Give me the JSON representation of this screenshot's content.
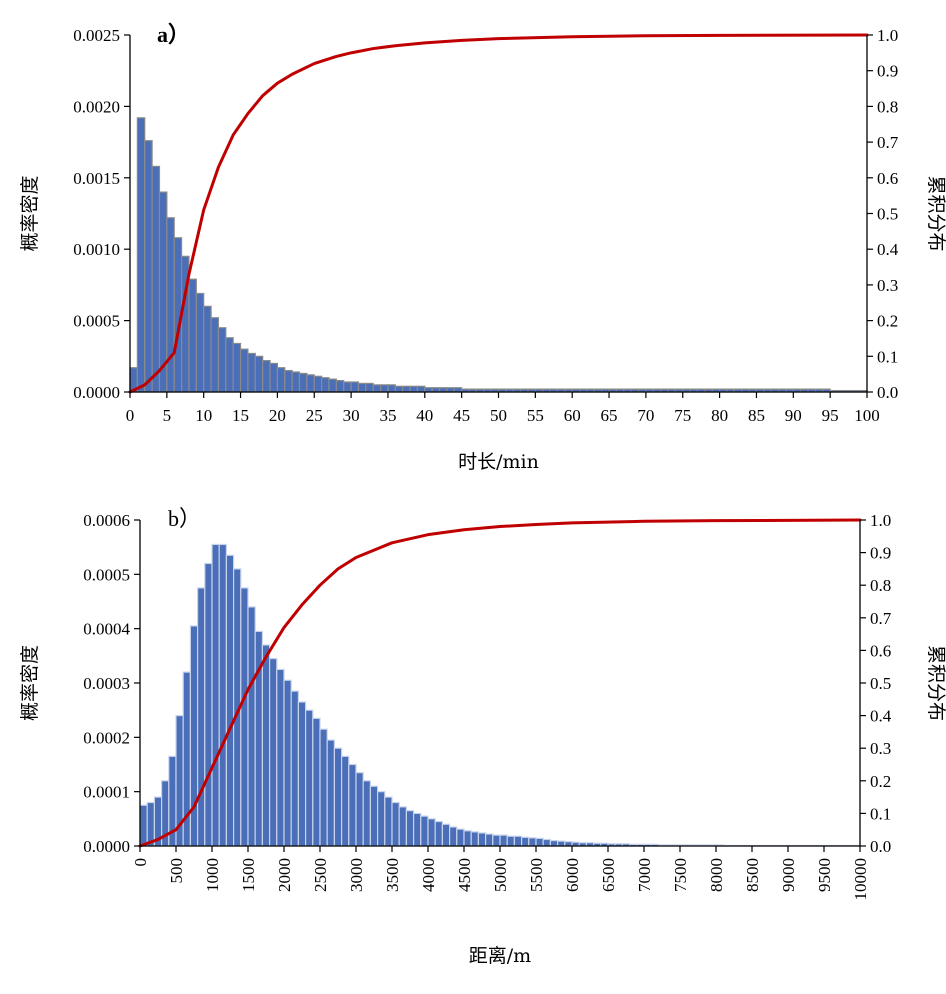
{
  "chart_data": [
    {
      "type": "bar",
      "panel_label": "a）",
      "xlabel": "时长/min",
      "ylabel": "概率密度",
      "y2label": "累积分布",
      "xlim": [
        0,
        100
      ],
      "ylim": [
        0,
        0.0025
      ],
      "y2lim": [
        0,
        1
      ],
      "x_ticks": [
        0,
        5,
        10,
        15,
        20,
        25,
        30,
        35,
        40,
        45,
        50,
        55,
        60,
        65,
        70,
        75,
        80,
        85,
        90,
        95,
        100
      ],
      "x_tick_labels": [
        "0",
        "5",
        "10",
        "15",
        "20",
        "25",
        "30",
        "35",
        "40",
        "45",
        "50",
        "55",
        "60",
        "65",
        "70",
        "75",
        "80",
        "85",
        "90",
        "95",
        "100"
      ],
      "y_ticks": [
        0,
        0.0005,
        0.001,
        0.0015,
        0.002,
        0.0025
      ],
      "y_tick_labels": [
        "0.0000",
        "0.0005",
        "0.0010",
        "0.0015",
        "0.0020",
        "0.0025"
      ],
      "y2_ticks": [
        0,
        0.1,
        0.2,
        0.3,
        0.4,
        0.5,
        0.6,
        0.7,
        0.8,
        0.9,
        1
      ],
      "y2_tick_labels": [
        "0.0",
        "0.1",
        "0.2",
        "0.3",
        "0.4",
        "0.5",
        "0.6",
        "0.7",
        "0.8",
        "0.9",
        "1.0"
      ],
      "bin_width": 1,
      "bin_start": 0,
      "histogram": [
        0.00017,
        0.00192,
        0.00176,
        0.00158,
        0.0014,
        0.00122,
        0.00108,
        0.00095,
        0.00079,
        0.00069,
        0.0006,
        0.00052,
        0.00045,
        0.00038,
        0.00034,
        0.0003,
        0.00027,
        0.00025,
        0.00022,
        0.0002,
        0.00017,
        0.00015,
        0.00014,
        0.00013,
        0.00012,
        0.00011,
        0.0001,
        9e-05,
        8e-05,
        7e-05,
        7e-05,
        6e-05,
        6e-05,
        5e-05,
        5e-05,
        5e-05,
        4e-05,
        4e-05,
        4e-05,
        4e-05,
        3e-05,
        3e-05,
        3e-05,
        3e-05,
        3e-05,
        2e-05,
        2e-05,
        2e-05,
        2e-05,
        2e-05,
        2e-05,
        2e-05,
        2e-05,
        2e-05,
        2e-05,
        2e-05,
        2e-05,
        2e-05,
        2e-05,
        2e-05,
        2e-05,
        2e-05,
        2e-05,
        2e-05,
        2e-05,
        2e-05,
        2e-05,
        2e-05,
        2e-05,
        2e-05,
        2e-05,
        2e-05,
        2e-05,
        2e-05,
        2e-05,
        2e-05,
        2e-05,
        2e-05,
        2e-05,
        2e-05,
        2e-05,
        2e-05,
        2e-05,
        2e-05,
        2e-05,
        2e-05,
        2e-05,
        2e-05,
        2e-05,
        2e-05,
        2e-05,
        2e-05,
        2e-05,
        2e-05,
        2e-05,
        1e-05,
        1e-05,
        1e-05,
        1e-05,
        1e-05
      ],
      "bar_color": "#4a6fb8",
      "bar_edge": "#8a8a8a",
      "cdf": [
        [
          0,
          0
        ],
        [
          2,
          0.02
        ],
        [
          4,
          0.06
        ],
        [
          6,
          0.11
        ],
        [
          8,
          0.33
        ],
        [
          10,
          0.51
        ],
        [
          12,
          0.63
        ],
        [
          14,
          0.72
        ],
        [
          16,
          0.78
        ],
        [
          18,
          0.83
        ],
        [
          20,
          0.865
        ],
        [
          22,
          0.89
        ],
        [
          25,
          0.92
        ],
        [
          28,
          0.94
        ],
        [
          30,
          0.95
        ],
        [
          33,
          0.962
        ],
        [
          36,
          0.97
        ],
        [
          40,
          0.978
        ],
        [
          45,
          0.985
        ],
        [
          50,
          0.99
        ],
        [
          60,
          0.995
        ],
        [
          70,
          0.998
        ],
        [
          80,
          0.999
        ],
        [
          100,
          1
        ]
      ],
      "cdf_color": "#c00000"
    },
    {
      "type": "bar",
      "panel_label": "b）",
      "xlabel": "距离/m",
      "ylabel": "概率密度",
      "y2label": "累积分布",
      "xlim": [
        0,
        10000
      ],
      "ylim": [
        0,
        0.0006
      ],
      "y2lim": [
        0,
        1
      ],
      "x_ticks": [
        0,
        500,
        1000,
        1500,
        2000,
        2500,
        3000,
        3500,
        4000,
        4500,
        5000,
        5500,
        6000,
        6500,
        7000,
        7500,
        8000,
        8500,
        9000,
        9500,
        10000
      ],
      "x_tick_labels": [
        "0",
        "500",
        "1000",
        "1500",
        "2000",
        "2500",
        "3000",
        "3500",
        "4000",
        "4500",
        "5000",
        "5500",
        "6000",
        "6500",
        "7000",
        "7500",
        "8000",
        "8500",
        "9000",
        "9500",
        "10000"
      ],
      "y_ticks": [
        0,
        0.0001,
        0.0002,
        0.0003,
        0.0004,
        0.0005,
        0.0006
      ],
      "y_tick_labels": [
        "0.0000",
        "0.0001",
        "0.0002",
        "0.0003",
        "0.0004",
        "0.0005",
        "0.0006"
      ],
      "y2_ticks": [
        0,
        0.1,
        0.2,
        0.3,
        0.4,
        0.5,
        0.6,
        0.7,
        0.8,
        0.9,
        1
      ],
      "y2_tick_labels": [
        "0.0",
        "0.1",
        "0.2",
        "0.3",
        "0.4",
        "0.5",
        "0.6",
        "0.7",
        "0.8",
        "0.9",
        "1.0"
      ],
      "bin_width": 100,
      "bin_start": 0,
      "histogram": [
        7.5e-05,
        8e-05,
        9e-05,
        0.00012,
        0.000165,
        0.00024,
        0.00032,
        0.000405,
        0.000475,
        0.00052,
        0.000555,
        0.000555,
        0.000535,
        0.00051,
        0.000475,
        0.00044,
        0.000395,
        0.00037,
        0.000345,
        0.000325,
        0.000305,
        0.000285,
        0.000265,
        0.00025,
        0.000235,
        0.000215,
        0.000195,
        0.00018,
        0.000165,
        0.00015,
        0.000135,
        0.00012,
        0.00011,
        0.0001,
        9e-05,
        8e-05,
        7.2e-05,
        6.5e-05,
        6e-05,
        5.5e-05,
        5e-05,
        4.5e-05,
        4e-05,
        3.5e-05,
        3.1e-05,
        2.8e-05,
        2.6e-05,
        2.4e-05,
        2.2e-05,
        2e-05,
        2e-05,
        1.8e-05,
        1.8e-05,
        1.6e-05,
        1.5e-05,
        1.4e-05,
        1.2e-05,
        1e-05,
        9e-06,
        8e-06,
        7e-06,
        6e-06,
        6e-06,
        5e-06,
        5e-06,
        4e-06,
        4e-06,
        4e-06,
        3e-06,
        3e-06,
        3e-06,
        3e-06,
        2e-06,
        2e-06,
        2e-06,
        2e-06,
        2e-06,
        2e-06,
        2e-06,
        2e-06,
        2e-06,
        1e-06,
        1e-06,
        1e-06,
        1e-06,
        1e-06,
        1e-06,
        1e-06,
        1e-06,
        1e-06,
        1e-06,
        1e-06,
        1e-06,
        1e-06,
        1e-06,
        1e-06,
        1e-06,
        1e-06,
        1e-06,
        1e-06
      ],
      "bar_color": "#4a6fb8",
      "bar_edge": "#c8d3ec",
      "cdf": [
        [
          0,
          0
        ],
        [
          250,
          0.02
        ],
        [
          500,
          0.05
        ],
        [
          750,
          0.12
        ],
        [
          1000,
          0.24
        ],
        [
          1250,
          0.36
        ],
        [
          1500,
          0.48
        ],
        [
          1750,
          0.58
        ],
        [
          2000,
          0.67
        ],
        [
          2250,
          0.74
        ],
        [
          2500,
          0.8
        ],
        [
          2750,
          0.85
        ],
        [
          3000,
          0.885
        ],
        [
          3500,
          0.93
        ],
        [
          4000,
          0.955
        ],
        [
          4500,
          0.97
        ],
        [
          5000,
          0.98
        ],
        [
          5500,
          0.986
        ],
        [
          6000,
          0.991
        ],
        [
          7000,
          0.996
        ],
        [
          8000,
          0.998
        ],
        [
          9000,
          0.999
        ],
        [
          10000,
          1
        ]
      ],
      "cdf_color": "#c00000"
    }
  ]
}
